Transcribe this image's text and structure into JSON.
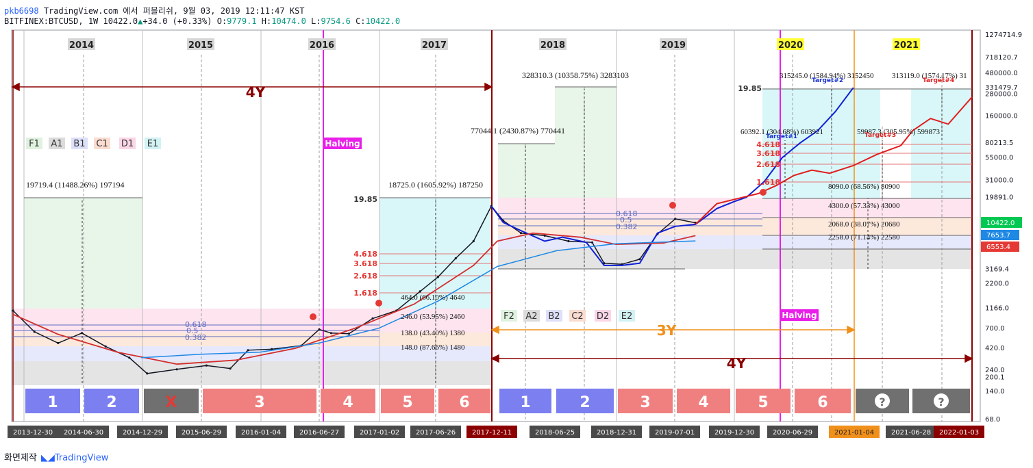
{
  "header": {
    "user": "pkb6698",
    "publisher_line": "TradingView.com 에서 퍼블리쉬, 9월 03, 2019 12:11:47 KST",
    "symbol": "BITFINEX:BTCUSD, 1W",
    "last": "10422.0",
    "change": "+34.0 (+0.33%)",
    "o_label": "O:",
    "o": "9779.1",
    "h_label": "H:",
    "h": "10474.0",
    "l_label": "L:",
    "l": "9754.6",
    "c_label": "C:",
    "c": "10422.0"
  },
  "footer": {
    "made_with": "화면제작",
    "brand": "TradingView"
  },
  "colors": {
    "candle": "#131722",
    "ma_red": "#d32f2f",
    "ma_blue": "#1e88e5",
    "projection_blue": "#0d1fd6",
    "projection_red": "#e01e1e",
    "halving": "#e91ee9",
    "four_year": "#8b0000",
    "three_year": "#f0901a"
  },
  "chart_data": {
    "type": "line",
    "title": "",
    "scale": "log",
    "ylim": [
      68.0,
      1274714.9
    ],
    "price_axis_labels": [
      "1274714.9",
      "718120.7",
      "480000.0",
      "331479.7",
      "280000.0",
      "160000.0",
      "80213.5",
      "55000.0",
      "31000.0",
      "19891.0",
      "10422.0",
      "7653.7",
      "6553.4",
      "3169.4",
      "2200.0",
      "1166.0",
      "700.0",
      "420.0",
      "240.0",
      "200.1",
      "140.0",
      "68.0"
    ],
    "date_axis_labels": [
      "2013-12-30",
      "2014-06-30",
      "2014-12-29",
      "2015-06-29",
      "2016-01-04",
      "2016-06-27",
      "2017-01-02",
      "2017-06-26",
      "2017-12-11",
      "2018-06-25",
      "2018-12-31",
      "2019-07-01",
      "2019-12-30",
      "2020-06-29",
      "2021-01-04",
      "2021-06-28",
      "2022-01-03"
    ],
    "year_labels": [
      "2014",
      "2015",
      "2016",
      "2017",
      "2018",
      "2019",
      "2020",
      "2021"
    ],
    "cycle_1_boxes": [
      "1",
      "2",
      "X",
      "3",
      "4",
      "5",
      "6"
    ],
    "cycle_2_boxes": [
      "1",
      "2",
      "3",
      "4",
      "5",
      "6",
      "?",
      "?"
    ],
    "legend_cycle_1": [
      "F1",
      "A1",
      "B1",
      "C1",
      "D1",
      "E1"
    ],
    "legend_cycle_2": [
      "F2",
      "A2",
      "B2",
      "C2",
      "D2",
      "E2"
    ],
    "annotations": {
      "four_year": "4Y",
      "three_year": "3Y",
      "halving": "Halving",
      "measure_1": "19719.4 (11488.26%) 197194",
      "measure_2": "18725.0 (1605.92%) 187250",
      "measure_3": "77044.1 (2430.87%) 770441",
      "measure_4": "328310.3 (10358.75%) 3283103",
      "measure_5": "315245.0 (1584.94%) 3152450",
      "measure_6": "313119.0 (1574.17%) 31",
      "measure_7": "60392.1 (304.68%) 603921",
      "measure_8": "59987.3 (305.95%) 599873",
      "measure_9": "8090.0 (68.56%) 80900",
      "measure_10": "4300.0 (57.33%) 43000",
      "measure_11": "2068.0 (38.07%) 20680",
      "measure_12": "2258.0 (71.14%) 22580",
      "measure_13": "464.0 (66.10%) 4640",
      "measure_14": "246.0 (53.95%) 2460",
      "measure_15": "138.0 (43.40%) 1380",
      "measure_16": "148.0 (87.66%) 1480",
      "targets": [
        "Target#1",
        "Target#2",
        "Target#3",
        "Target#4"
      ]
    },
    "fib_1": [
      "4.618",
      "3.618",
      "2.618",
      "1.618"
    ],
    "fib_1_top": "19.85",
    "fib_2": [
      "4.618",
      "3.618",
      "2.618",
      "1.618"
    ],
    "fib_2_top": "19.85",
    "retracement_1": [
      "0.618",
      "0.5",
      "0.382"
    ],
    "retracement_2": [
      "0.618",
      "0.5",
      "0.382"
    ],
    "last_price_label": "10422.0",
    "ma_label_1": "7653.7",
    "ma_label_2": "6553.4",
    "series": [
      {
        "name": "",
        "points": [
          [
            2013.92,
            1100
          ],
          [
            2014.1,
            640
          ],
          [
            2014.3,
            480
          ],
          [
            2014.5,
            620
          ],
          [
            2014.7,
            440
          ],
          [
            2014.9,
            330
          ],
          [
            2015.05,
            220
          ],
          [
            2015.3,
            245
          ],
          [
            2015.55,
            270
          ],
          [
            2015.75,
            250
          ],
          [
            2015.9,
            400
          ],
          [
            2016.1,
            410
          ],
          [
            2016.35,
            450
          ],
          [
            2016.5,
            680
          ],
          [
            2016.6,
            620
          ],
          [
            2016.75,
            610
          ],
          [
            2016.95,
            900
          ],
          [
            2017.15,
            1100
          ],
          [
            2017.35,
            1800
          ],
          [
            2017.5,
            2600
          ],
          [
            2017.65,
            4200
          ],
          [
            2017.8,
            6500
          ],
          [
            2017.95,
            16000
          ],
          [
            2018.05,
            11000
          ],
          [
            2018.2,
            8000
          ],
          [
            2018.4,
            7500
          ],
          [
            2018.6,
            6500
          ],
          [
            2018.8,
            6300
          ],
          [
            2018.9,
            3700
          ],
          [
            2019.05,
            3600
          ],
          [
            2019.2,
            4100
          ],
          [
            2019.35,
            7800
          ],
          [
            2019.5,
            11500
          ],
          [
            2019.67,
            10422
          ]
        ]
      },
      {
        "name": "",
        "points": [
          [
            2017.95,
            16000
          ],
          [
            2018.05,
            10500
          ],
          [
            2018.2,
            8500
          ],
          [
            2018.4,
            6500
          ],
          [
            2018.55,
            7200
          ],
          [
            2018.75,
            6300
          ],
          [
            2018.9,
            3500
          ],
          [
            2019.05,
            3500
          ],
          [
            2019.2,
            3700
          ],
          [
            2019.35,
            8000
          ],
          [
            2019.5,
            9500
          ],
          [
            2019.67,
            10000
          ],
          [
            2019.85,
            15000
          ],
          [
            2020.0,
            18000
          ],
          [
            2020.1,
            20000
          ],
          [
            2020.25,
            30000
          ],
          [
            2020.4,
            55000
          ],
          [
            2020.55,
            80000
          ],
          [
            2020.7,
            110000
          ],
          [
            2020.85,
            180000
          ],
          [
            2021.0,
            330000
          ]
        ]
      },
      {
        "name": "",
        "points": [
          [
            2019.67,
            10000
          ],
          [
            2019.85,
            17000
          ],
          [
            2020.0,
            19000
          ],
          [
            2020.2,
            22000
          ],
          [
            2020.35,
            27000
          ],
          [
            2020.5,
            35000
          ],
          [
            2020.65,
            40000
          ],
          [
            2020.8,
            37000
          ],
          [
            2021.0,
            45000
          ],
          [
            2021.2,
            60000
          ],
          [
            2021.4,
            75000
          ],
          [
            2021.5,
            110000
          ],
          [
            2021.65,
            150000
          ],
          [
            2021.8,
            130000
          ],
          [
            2022.0,
            260000
          ]
        ]
      },
      {
        "name": "",
        "points": [
          [
            2013.92,
            1000
          ],
          [
            2014.3,
            600
          ],
          [
            2014.8,
            380
          ],
          [
            2015.3,
            280
          ],
          [
            2015.8,
            310
          ],
          [
            2016.3,
            420
          ],
          [
            2016.8,
            700
          ],
          [
            2017.3,
            1300
          ],
          [
            2017.8,
            3500
          ],
          [
            2018.0,
            6500
          ],
          [
            2018.3,
            8000
          ],
          [
            2018.7,
            7200
          ],
          [
            2019.0,
            6000
          ],
          [
            2019.4,
            6200
          ],
          [
            2019.67,
            7500
          ]
        ]
      },
      {
        "name": "",
        "points": [
          [
            2015.0,
            330
          ],
          [
            2015.5,
            360
          ],
          [
            2016.0,
            380
          ],
          [
            2016.5,
            480
          ],
          [
            2017.0,
            700
          ],
          [
            2017.5,
            1400
          ],
          [
            2018.0,
            3400
          ],
          [
            2018.5,
            5100
          ],
          [
            2019.0,
            6100
          ],
          [
            2019.67,
            6553
          ]
        ]
      }
    ]
  }
}
